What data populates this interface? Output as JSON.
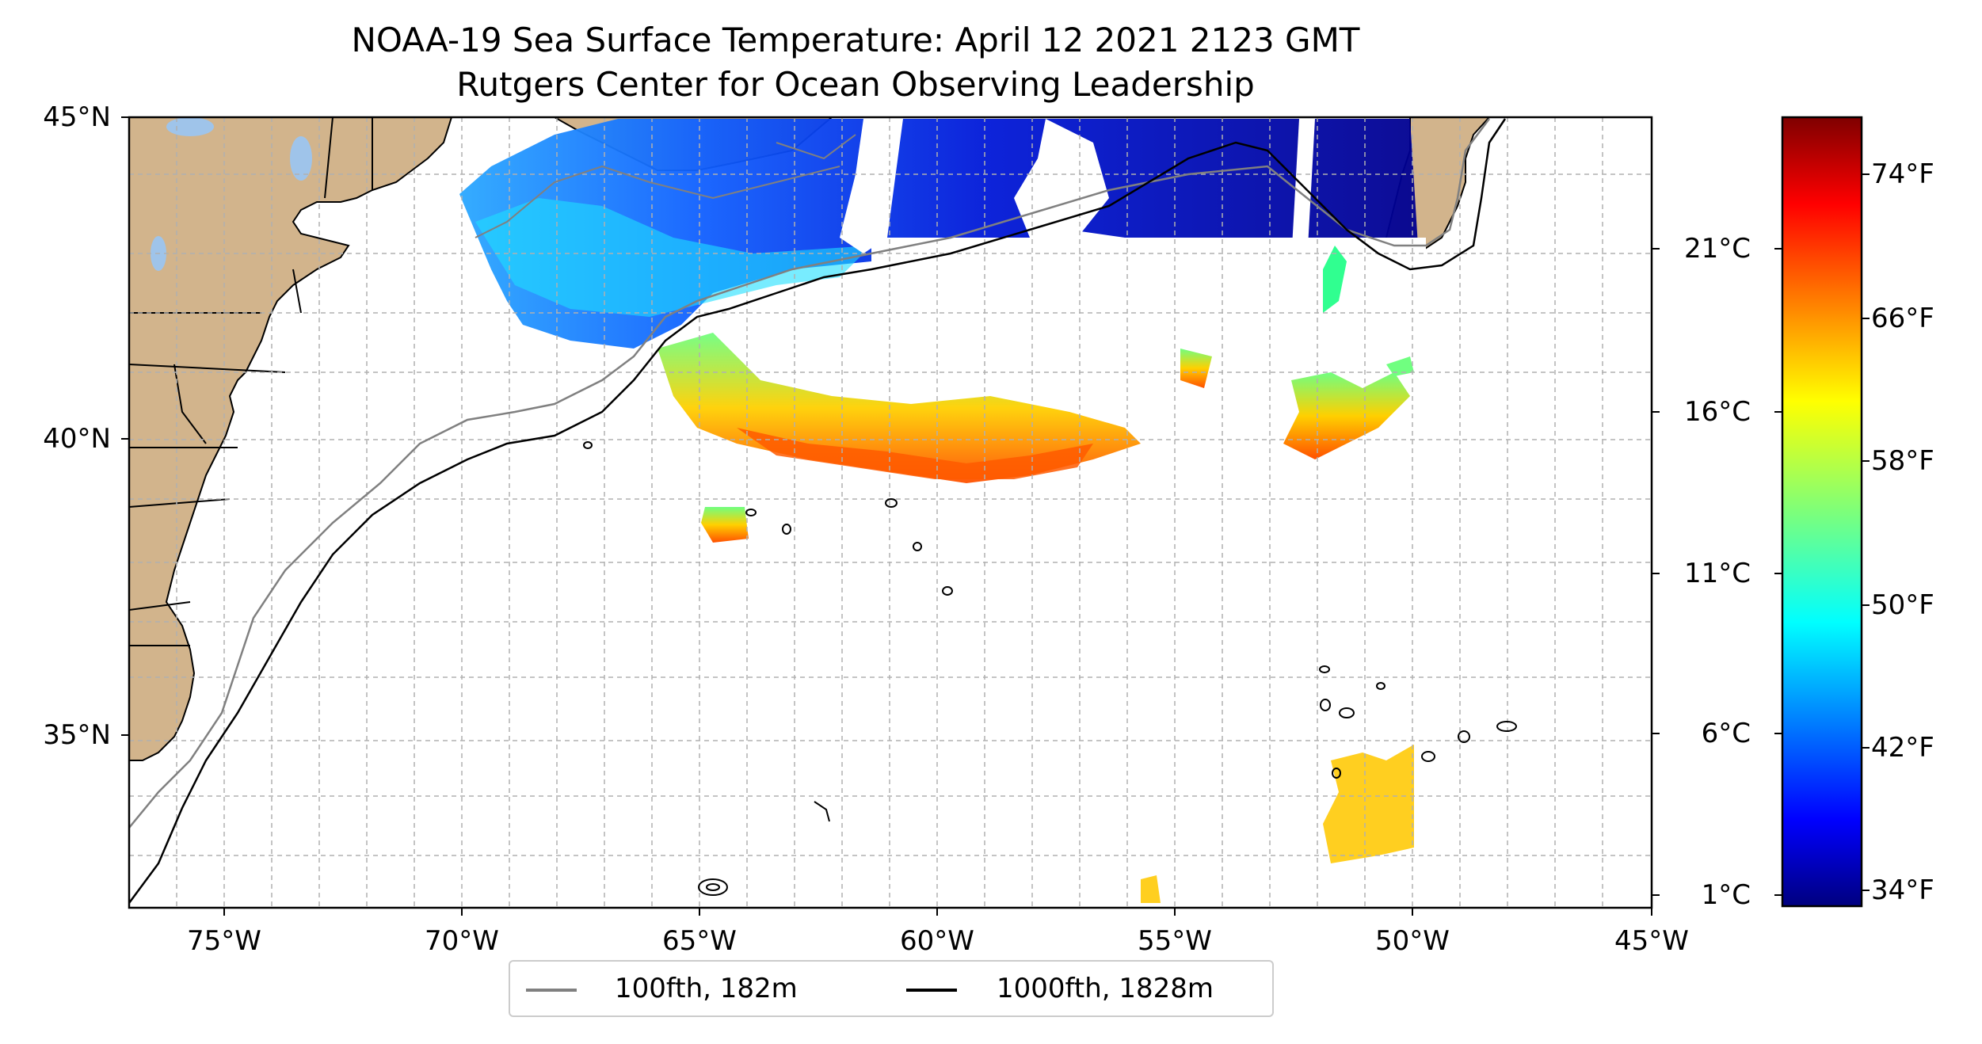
{
  "title": {
    "line1": "NOAA-19 Sea Surface Temperature: April 12 2021 2123 GMT",
    "line2": "Rutgers Center for Ocean Observing Leadership"
  },
  "map": {
    "lon_range": [
      -77,
      -45
    ],
    "lat_range": [
      32.6,
      45
    ],
    "lat_labels": [
      {
        "value": 45,
        "text": "45°N"
      },
      {
        "value": 40,
        "text": "40°N"
      },
      {
        "value": 35,
        "text": "35°N"
      }
    ],
    "lon_labels": [
      {
        "value": -75,
        "text": "75°W"
      },
      {
        "value": -70,
        "text": "70°W"
      },
      {
        "value": -65,
        "text": "65°W"
      },
      {
        "value": -60,
        "text": "60°W"
      },
      {
        "value": -55,
        "text": "55°W"
      },
      {
        "value": -50,
        "text": "50°W"
      },
      {
        "value": -45,
        "text": "45°W"
      }
    ],
    "gridlines": true,
    "land_color": "#d2b48c",
    "lake_color": "#9fc4ea"
  },
  "colorbar": {
    "colormap": "jet",
    "range_c": [
      0.5,
      25
    ],
    "celsius_ticks": [
      {
        "value": 1,
        "text": "1°C"
      },
      {
        "value": 6,
        "text": "6°C"
      },
      {
        "value": 11,
        "text": "11°C"
      },
      {
        "value": 16,
        "text": "16°C"
      },
      {
        "value": 21,
        "text": "21°C"
      }
    ],
    "fahrenheit_ticks": [
      {
        "value": 34,
        "text": "34°F"
      },
      {
        "value": 42,
        "text": "42°F"
      },
      {
        "value": 50,
        "text": "50°F"
      },
      {
        "value": 58,
        "text": "58°F"
      },
      {
        "value": 66,
        "text": "66°F"
      },
      {
        "value": 74,
        "text": "74°F"
      }
    ]
  },
  "legend": {
    "placement": "bottom-center",
    "items": [
      {
        "label": "100fth, 182m",
        "color": "#808080"
      },
      {
        "label": "1000fth, 1828m",
        "color": "#000000"
      }
    ]
  }
}
